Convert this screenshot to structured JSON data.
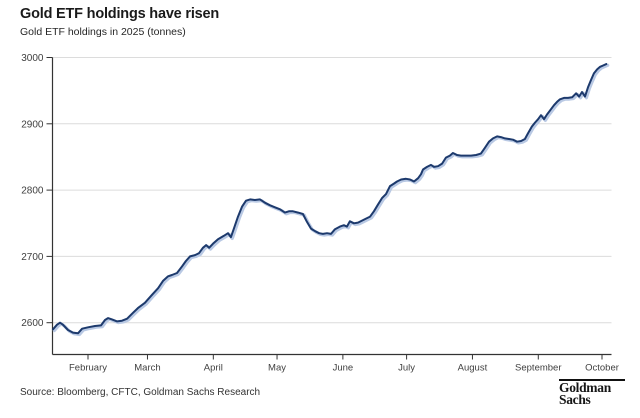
{
  "header": {
    "title": "Gold ETF holdings have risen",
    "subtitle": "Gold ETF holdings in 2025 (tonnes)"
  },
  "footer": {
    "source": "Source: Bloomberg, CFTC, Goldman Sachs Research",
    "logo_line1": "Goldman",
    "logo_line2": "Sachs"
  },
  "chart_data": {
    "type": "line",
    "title": "Gold ETF holdings have risen",
    "subtitle": "Gold ETF holdings in 2025 (tonnes)",
    "ylabel": "tonnes",
    "ylim": [
      2550,
      3000
    ],
    "yticks": [
      2600,
      2700,
      2800,
      2900,
      3000
    ],
    "grid": "horizontal",
    "legend": "none",
    "colors": {
      "line": "#1d3a6d",
      "halo": "#b9c9e4",
      "axis": "#333333",
      "grid": "#dcdcdc",
      "tick_text": "#404040"
    },
    "xticks": [
      {
        "label": "February",
        "day": 32
      },
      {
        "label": "March",
        "day": 60
      },
      {
        "label": "April",
        "day": 91
      },
      {
        "label": "May",
        "day": 121
      },
      {
        "label": "June",
        "day": 152
      },
      {
        "label": "July",
        "day": 182
      },
      {
        "label": "August",
        "day": 213
      },
      {
        "label": "September",
        "day": 244
      },
      {
        "label": "October",
        "day": 274
      }
    ],
    "x_unit": "day-of-year 2025",
    "series": [
      {
        "name": "Gold ETF holdings (tonnes)",
        "points": [
          [
            15.5,
            2590
          ],
          [
            17.4,
            2597
          ],
          [
            18.8,
            2600
          ],
          [
            20.2,
            2597
          ],
          [
            22.6,
            2589
          ],
          [
            24.9,
            2585
          ],
          [
            27.3,
            2584
          ],
          [
            29.2,
            2591
          ],
          [
            32,
            2593
          ],
          [
            35.3,
            2595
          ],
          [
            38.1,
            2596
          ],
          [
            40,
            2604
          ],
          [
            41.4,
            2607
          ],
          [
            43.3,
            2605
          ],
          [
            45.7,
            2602
          ],
          [
            48,
            2603
          ],
          [
            50.4,
            2606
          ],
          [
            53.2,
            2615
          ],
          [
            55.5,
            2622
          ],
          [
            58.8,
            2630
          ],
          [
            62.1,
            2642
          ],
          [
            65,
            2652
          ],
          [
            67.3,
            2663
          ],
          [
            69.7,
            2670
          ],
          [
            71.5,
            2672
          ],
          [
            73.9,
            2675
          ],
          [
            76.3,
            2685
          ],
          [
            78.1,
            2693
          ],
          [
            80,
            2700
          ],
          [
            82.4,
            2702
          ],
          [
            84.3,
            2705
          ],
          [
            86.1,
            2713
          ],
          [
            87.6,
            2717
          ],
          [
            89,
            2713
          ],
          [
            90.8,
            2719
          ],
          [
            93.2,
            2726
          ],
          [
            96,
            2731
          ],
          [
            97.9,
            2735
          ],
          [
            99.3,
            2729
          ],
          [
            100.7,
            2742
          ],
          [
            102.6,
            2760
          ],
          [
            104.5,
            2775
          ],
          [
            106.4,
            2784
          ],
          [
            108.3,
            2786
          ],
          [
            110.6,
            2785
          ],
          [
            113,
            2786
          ],
          [
            115.3,
            2781
          ],
          [
            117.7,
            2777
          ],
          [
            120,
            2774
          ],
          [
            122.4,
            2771
          ],
          [
            124.7,
            2766
          ],
          [
            126.6,
            2768
          ],
          [
            128.5,
            2768
          ],
          [
            130.9,
            2766
          ],
          [
            133.2,
            2764
          ],
          [
            135.1,
            2752
          ],
          [
            137,
            2742
          ],
          [
            138.9,
            2738
          ],
          [
            140.8,
            2735
          ],
          [
            142.6,
            2734
          ],
          [
            144.5,
            2735
          ],
          [
            146.4,
            2734
          ],
          [
            148.3,
            2741
          ],
          [
            150.6,
            2745
          ],
          [
            152.5,
            2747
          ],
          [
            153.9,
            2745
          ],
          [
            155.3,
            2753
          ],
          [
            157.2,
            2750
          ],
          [
            159.1,
            2751
          ],
          [
            161,
            2754
          ],
          [
            162.9,
            2757
          ],
          [
            164.8,
            2760
          ],
          [
            166.6,
            2768
          ],
          [
            168.5,
            2778
          ],
          [
            170.4,
            2788
          ],
          [
            172.3,
            2794
          ],
          [
            174.2,
            2806
          ],
          [
            176.1,
            2810
          ],
          [
            177.5,
            2813
          ],
          [
            179.4,
            2816
          ],
          [
            181.7,
            2817
          ],
          [
            183.6,
            2816
          ],
          [
            185.5,
            2813
          ],
          [
            187.4,
            2818
          ],
          [
            188.8,
            2824
          ],
          [
            189.7,
            2831
          ],
          [
            191.6,
            2835
          ],
          [
            193.5,
            2838
          ],
          [
            194.9,
            2835
          ],
          [
            196.8,
            2836
          ],
          [
            198.7,
            2840
          ],
          [
            200.5,
            2849
          ],
          [
            202.4,
            2852
          ],
          [
            203.8,
            2856
          ],
          [
            205.7,
            2853
          ],
          [
            207.6,
            2852
          ],
          [
            210,
            2852
          ],
          [
            212.3,
            2852
          ],
          [
            214.7,
            2853
          ],
          [
            217,
            2855
          ],
          [
            218.9,
            2864
          ],
          [
            220.8,
            2873
          ],
          [
            222.7,
            2878
          ],
          [
            224.6,
            2881
          ],
          [
            226.4,
            2880
          ],
          [
            228.3,
            2878
          ],
          [
            230.2,
            2877
          ],
          [
            232.1,
            2876
          ],
          [
            234,
            2873
          ],
          [
            235.9,
            2874
          ],
          [
            237.7,
            2877
          ],
          [
            239.2,
            2886
          ],
          [
            241,
            2896
          ],
          [
            242.5,
            2902
          ],
          [
            243.9,
            2907
          ],
          [
            245.3,
            2913
          ],
          [
            246.7,
            2907
          ],
          [
            248.1,
            2914
          ],
          [
            250,
            2922
          ],
          [
            251.4,
            2928
          ],
          [
            252.8,
            2933
          ],
          [
            254.2,
            2937
          ],
          [
            256.1,
            2939
          ],
          [
            258,
            2939
          ],
          [
            259.9,
            2940
          ],
          [
            261.8,
            2946
          ],
          [
            263.2,
            2941
          ],
          [
            264.6,
            2948
          ],
          [
            266,
            2941
          ],
          [
            267.4,
            2955
          ],
          [
            268.8,
            2966
          ],
          [
            270.2,
            2976
          ],
          [
            271.7,
            2982
          ],
          [
            273.1,
            2986
          ],
          [
            274.5,
            2988
          ],
          [
            276,
            2990
          ]
        ]
      }
    ]
  }
}
